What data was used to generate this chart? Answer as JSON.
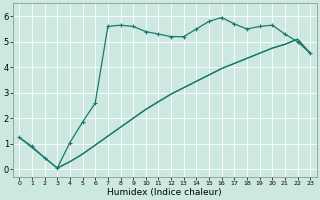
{
  "title": "",
  "xlabel": "Humidex (Indice chaleur)",
  "ylabel": "",
  "bg_color": "#cce8e0",
  "grid_color": "#ffffff",
  "line_color": "#1a7a6e",
  "xlim": [
    -0.5,
    23.5
  ],
  "ylim": [
    -0.3,
    6.5
  ],
  "xticks": [
    0,
    1,
    2,
    3,
    4,
    5,
    6,
    7,
    8,
    9,
    10,
    11,
    12,
    13,
    14,
    15,
    16,
    17,
    18,
    19,
    20,
    21,
    22,
    23
  ],
  "yticks": [
    0,
    1,
    2,
    3,
    4,
    5,
    6
  ],
  "line1_x": [
    0,
    1,
    2,
    3,
    4,
    5,
    6,
    7,
    8,
    9,
    10,
    11,
    12,
    13,
    14,
    15,
    16,
    17,
    18,
    19,
    20,
    21,
    22,
    23
  ],
  "line1_y": [
    1.25,
    0.9,
    0.45,
    0.05,
    1.05,
    1.85,
    2.6,
    5.6,
    5.65,
    5.6,
    5.4,
    5.3,
    5.2,
    5.2,
    5.5,
    5.8,
    5.95,
    5.7,
    5.5,
    5.6,
    5.65,
    5.3,
    5.0,
    4.55
  ],
  "line2_x": [
    3,
    4,
    5,
    6,
    7,
    8,
    9,
    10,
    11,
    12,
    13,
    14,
    15,
    16,
    17,
    18,
    19,
    20,
    21,
    22,
    23
  ],
  "line2_y": [
    0.05,
    0.3,
    0.6,
    0.95,
    1.3,
    1.65,
    2.0,
    2.35,
    2.65,
    2.95,
    3.2,
    3.45,
    3.7,
    3.95,
    4.15,
    4.35,
    4.55,
    4.75,
    4.9,
    5.1,
    4.55
  ],
  "line3_x": [
    0,
    3,
    4,
    5,
    6,
    7,
    8,
    9,
    10,
    11,
    12,
    13,
    14,
    15,
    16,
    17,
    18,
    19,
    20,
    21,
    22,
    23
  ],
  "line3_y": [
    1.25,
    0.05,
    0.3,
    0.6,
    0.95,
    1.3,
    1.65,
    2.0,
    2.35,
    2.65,
    2.95,
    3.2,
    3.45,
    3.7,
    3.95,
    4.15,
    4.35,
    4.55,
    4.75,
    4.9,
    5.1,
    4.55
  ]
}
